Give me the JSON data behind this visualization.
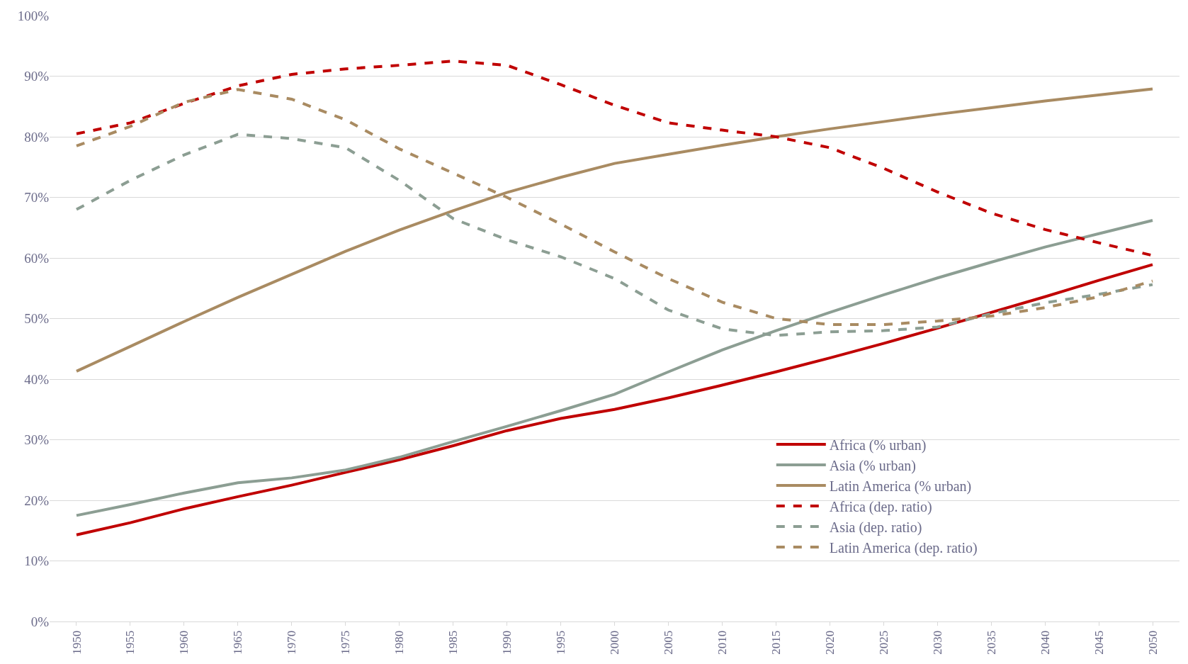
{
  "chart_data": {
    "type": "line",
    "categories": [
      "1950",
      "1955",
      "1960",
      "1965",
      "1970",
      "1975",
      "1980",
      "1985",
      "1990",
      "1995",
      "2000",
      "2005",
      "2010",
      "2015",
      "2020",
      "2025",
      "2030",
      "2035",
      "2040",
      "2045",
      "2050"
    ],
    "series": [
      {
        "name": "Africa (% urban)",
        "color": "#c00000",
        "line_style": "solid",
        "values": [
          14.3,
          16.3,
          18.6,
          20.6,
          22.5,
          24.6,
          26.7,
          29.0,
          31.5,
          33.5,
          35.0,
          36.9,
          39.0,
          41.2,
          43.5,
          45.9,
          48.4,
          51.0,
          53.6,
          56.3,
          58.9
        ]
      },
      {
        "name": "Asia (% urban)",
        "color": "#8c9e93",
        "line_style": "solid",
        "values": [
          17.5,
          19.3,
          21.2,
          22.9,
          23.7,
          25.0,
          27.1,
          29.7,
          32.2,
          34.8,
          37.5,
          41.2,
          44.8,
          48.0,
          51.0,
          53.9,
          56.7,
          59.3,
          61.8,
          64.0,
          66.2
        ]
      },
      {
        "name": "Latin America (% urban)",
        "color": "#a98b62",
        "line_style": "solid",
        "values": [
          41.3,
          45.4,
          49.5,
          53.5,
          57.3,
          61.1,
          64.6,
          67.8,
          70.8,
          73.3,
          75.6,
          77.1,
          78.6,
          80.0,
          81.3,
          82.5,
          83.7,
          84.8,
          85.9,
          86.9,
          87.9
        ]
      },
      {
        "name": "Africa (dep. ratio)",
        "color": "#c00000",
        "line_style": "dashed",
        "values": [
          80.5,
          82.3,
          85.5,
          88.4,
          90.3,
          91.2,
          91.8,
          92.5,
          91.8,
          88.6,
          85.2,
          82.3,
          81.1,
          80.0,
          78.2,
          74.8,
          70.9,
          67.4,
          64.7,
          62.5,
          60.4
        ]
      },
      {
        "name": "Asia (dep. ratio)",
        "color": "#8c9e93",
        "line_style": "dashed",
        "values": [
          68.0,
          72.8,
          77.0,
          80.4,
          79.7,
          78.2,
          72.8,
          66.5,
          63.0,
          60.2,
          56.6,
          51.4,
          48.3,
          47.2,
          47.8,
          48.0,
          48.6,
          50.8,
          52.6,
          54.0,
          55.6
        ]
      },
      {
        "name": "Latin America (dep. ratio)",
        "color": "#a98b62",
        "line_style": "dashed",
        "values": [
          78.5,
          81.7,
          85.7,
          87.8,
          86.2,
          82.8,
          78.0,
          74.0,
          70.0,
          65.6,
          61.0,
          56.6,
          52.7,
          50.0,
          49.0,
          49.0,
          49.6,
          50.4,
          51.8,
          53.6,
          56.2
        ]
      }
    ],
    "ylim": [
      0,
      100
    ],
    "yticks": [
      {
        "value": 0,
        "label": "0%"
      },
      {
        "value": 10,
        "label": "10%"
      },
      {
        "value": 20,
        "label": "20%"
      },
      {
        "value": 30,
        "label": "30%"
      },
      {
        "value": 40,
        "label": "40%"
      },
      {
        "value": 50,
        "label": "50%"
      },
      {
        "value": 60,
        "label": "60%"
      },
      {
        "value": 70,
        "label": "70%"
      },
      {
        "value": 80,
        "label": "80%"
      },
      {
        "value": 90,
        "label": "90%"
      },
      {
        "value": 100,
        "label": "100%"
      }
    ],
    "grid": "y",
    "legend": "bottom right",
    "marker": "none"
  }
}
